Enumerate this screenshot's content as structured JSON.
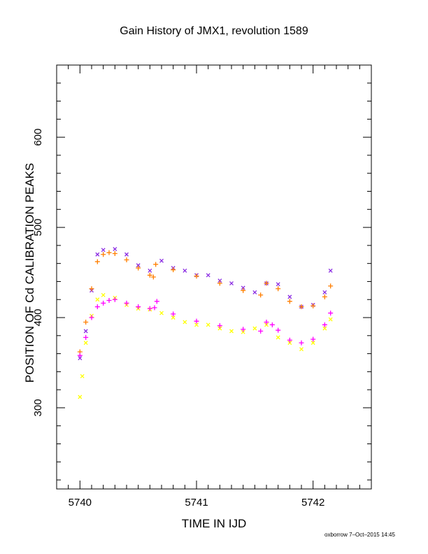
{
  "chart_data": {
    "type": "scatter",
    "title": "Gain History of JMX1, revolution 1589",
    "xlabel": "TIME IN IJD",
    "ylabel": "POSITION OF Cd CALIBRATION PEAKS",
    "xlim": [
      5739.8,
      5742.5
    ],
    "ylim": [
      210,
      680
    ],
    "x_ticks": [
      5740,
      5741,
      5742
    ],
    "y_ticks": [
      300,
      400,
      500,
      600
    ],
    "grid": false,
    "legend": "none",
    "series": [
      {
        "marker": "x",
        "color": "#8a2be2",
        "x": [
          5740.0,
          5740.05,
          5740.1,
          5740.15,
          5740.2,
          5740.3,
          5740.4,
          5740.5,
          5740.6,
          5740.7,
          5740.8,
          5740.9,
          5741.0,
          5741.1,
          5741.2,
          5741.3,
          5741.4,
          5741.5,
          5741.6,
          5741.7,
          5741.8,
          5741.9,
          5742.0,
          5742.1,
          5742.15
        ],
        "y": [
          355,
          385,
          430,
          470,
          475,
          476,
          470,
          458,
          452,
          463,
          455,
          452,
          447,
          447,
          441,
          438,
          433,
          428,
          438,
          437,
          423,
          412,
          414,
          428,
          452
        ]
      },
      {
        "marker": "+",
        "color": "#ff7f00",
        "x": [
          5740.0,
          5740.05,
          5740.1,
          5740.15,
          5740.2,
          5740.25,
          5740.3,
          5740.4,
          5740.5,
          5740.6,
          5740.63,
          5740.65,
          5740.8,
          5741.0,
          5741.2,
          5741.4,
          5741.55,
          5741.6,
          5741.7,
          5741.8,
          5741.9,
          5742.0,
          5742.1,
          5742.15
        ],
        "y": [
          362,
          395,
          432,
          462,
          470,
          472,
          471,
          464,
          455,
          447,
          445,
          459,
          453,
          446,
          438,
          430,
          425,
          438,
          432,
          418,
          412,
          413,
          423,
          435
        ]
      },
      {
        "marker": "x",
        "color": "#ffff00",
        "x": [
          5740.0,
          5740.02,
          5740.05,
          5740.1,
          5740.15,
          5740.2,
          5740.3,
          5740.4,
          5740.5,
          5740.6,
          5740.7,
          5740.8,
          5740.9,
          5741.0,
          5741.1,
          5741.2,
          5741.3,
          5741.4,
          5741.5,
          5741.6,
          5741.7,
          5741.8,
          5741.9,
          5742.0,
          5742.1,
          5742.15
        ],
        "y": [
          312,
          335,
          372,
          402,
          420,
          425,
          422,
          414,
          410,
          409,
          405,
          400,
          395,
          392,
          392,
          388,
          385,
          384,
          388,
          392,
          378,
          372,
          365,
          372,
          388,
          398
        ]
      },
      {
        "marker": "+",
        "color": "#ff00ff",
        "x": [
          5740.0,
          5740.05,
          5740.1,
          5740.15,
          5740.2,
          5740.25,
          5740.3,
          5740.4,
          5740.5,
          5740.6,
          5740.64,
          5740.66,
          5740.8,
          5741.0,
          5741.2,
          5741.4,
          5741.55,
          5741.6,
          5741.65,
          5741.7,
          5741.8,
          5741.9,
          5742.0,
          5742.1,
          5742.15
        ],
        "y": [
          358,
          378,
          400,
          412,
          416,
          419,
          420,
          416,
          412,
          410,
          411,
          418,
          404,
          396,
          391,
          387,
          385,
          395,
          392,
          386,
          375,
          372,
          376,
          392,
          405
        ]
      }
    ]
  },
  "footer_note": "oxborrow  7–Oct–2015 14:45"
}
